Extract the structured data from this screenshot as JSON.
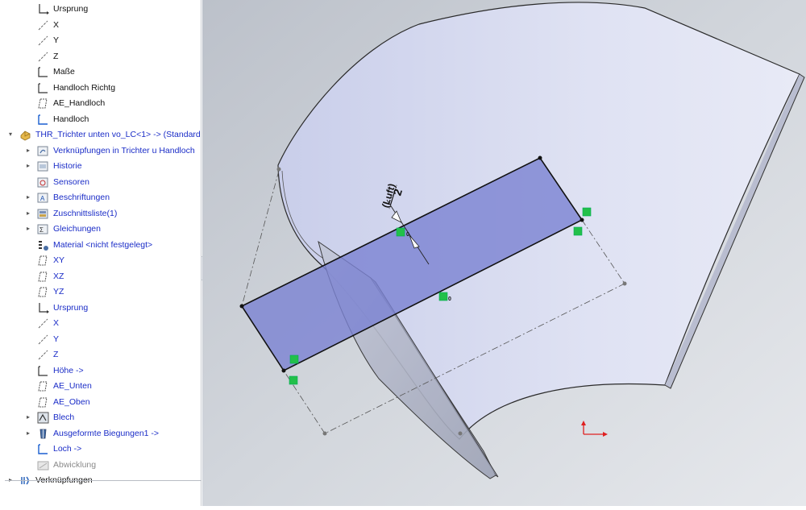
{
  "feature_tree": {
    "items": [
      {
        "label": "Ursprung",
        "icon": "origin-icon",
        "expander": "",
        "color": "black",
        "indent": 1
      },
      {
        "label": "X",
        "icon": "axis-icon",
        "expander": "",
        "color": "black",
        "indent": 1
      },
      {
        "label": "Y",
        "icon": "axis-icon",
        "expander": "",
        "color": "black",
        "indent": 1
      },
      {
        "label": "Z",
        "icon": "axis-icon",
        "expander": "",
        "color": "black",
        "indent": 1
      },
      {
        "label": "Maße",
        "icon": "sketch-icon",
        "expander": "",
        "color": "black",
        "indent": 1
      },
      {
        "label": "Handloch Richtg",
        "icon": "sketch-icon",
        "expander": "",
        "color": "black",
        "indent": 1
      },
      {
        "label": "AE_Handloch",
        "icon": "plane-icon",
        "expander": "",
        "color": "black",
        "indent": 1
      },
      {
        "label": "Handloch",
        "icon": "sketch-blue-icon",
        "expander": "",
        "color": "black",
        "indent": 1
      },
      {
        "label": "THR_Trichter unten vo_LC<1> -> (Standard",
        "icon": "part-icon",
        "expander": "▾",
        "color": "blue",
        "indent": 0
      },
      {
        "label": "Verknüpfungen in Trichter u Handloch",
        "icon": "mates-folder-icon",
        "expander": "▸",
        "color": "blue",
        "indent": 1
      },
      {
        "label": "Historie",
        "icon": "history-icon",
        "expander": "▸",
        "color": "blue",
        "indent": 1
      },
      {
        "label": "Sensoren",
        "icon": "sensor-icon",
        "expander": "",
        "color": "blue",
        "indent": 1
      },
      {
        "label": "Beschriftungen",
        "icon": "annotations-icon",
        "expander": "▸",
        "color": "blue",
        "indent": 1
      },
      {
        "label": "Zuschnittsliste(1)",
        "icon": "cutlist-icon",
        "expander": "▸",
        "color": "blue",
        "indent": 1
      },
      {
        "label": "Gleichungen",
        "icon": "equations-icon",
        "expander": "▸",
        "color": "blue",
        "indent": 1
      },
      {
        "label": "Material <nicht festgelegt>",
        "icon": "material-icon",
        "expander": "",
        "color": "blue",
        "indent": 1
      },
      {
        "label": "XY",
        "icon": "plane-icon",
        "expander": "",
        "color": "blue",
        "indent": 1
      },
      {
        "label": "XZ",
        "icon": "plane-icon",
        "expander": "",
        "color": "blue",
        "indent": 1
      },
      {
        "label": "YZ",
        "icon": "plane-icon",
        "expander": "",
        "color": "blue",
        "indent": 1
      },
      {
        "label": "Ursprung",
        "icon": "origin-icon",
        "expander": "",
        "color": "blue",
        "indent": 1
      },
      {
        "label": "X",
        "icon": "axis-icon",
        "expander": "",
        "color": "blue",
        "indent": 1
      },
      {
        "label": "Y",
        "icon": "axis-icon",
        "expander": "",
        "color": "blue",
        "indent": 1
      },
      {
        "label": "Z",
        "icon": "axis-icon",
        "expander": "",
        "color": "blue",
        "indent": 1
      },
      {
        "label": "Höhe ->",
        "icon": "sketch-icon",
        "expander": "",
        "color": "blue",
        "indent": 1
      },
      {
        "label": "AE_Unten",
        "icon": "plane-icon",
        "expander": "",
        "color": "blue",
        "indent": 1
      },
      {
        "label": "AE_Oben",
        "icon": "plane-icon",
        "expander": "",
        "color": "blue",
        "indent": 1
      },
      {
        "label": "Blech",
        "icon": "sheetmetal-icon",
        "expander": "▸",
        "color": "blue",
        "indent": 1
      },
      {
        "label": "Ausgeformte Biegungen1 ->",
        "icon": "lofted-bend-icon",
        "expander": "▸",
        "color": "blue",
        "indent": 1
      },
      {
        "label": "Loch ->",
        "icon": "sketch-blue-icon",
        "expander": "",
        "color": "blue",
        "indent": 1
      },
      {
        "label": "Abwicklung",
        "icon": "flatpattern-icon",
        "expander": "",
        "color": "gray",
        "indent": 1
      },
      {
        "label": "Verknüpfungen",
        "icon": "mates-icon",
        "expander": "▸",
        "color": "black",
        "indent": 0
      }
    ]
  },
  "viewport": {
    "dimension_value": "2",
    "dimension_note": "(Luft)",
    "colors": {
      "background": "#cfd3da",
      "part_face": "#d9ddf0",
      "selected_face": "#8a90d6",
      "relation_marker": "#22c04a",
      "triad_x": "#e02020",
      "triad_y": "#e02020"
    }
  }
}
